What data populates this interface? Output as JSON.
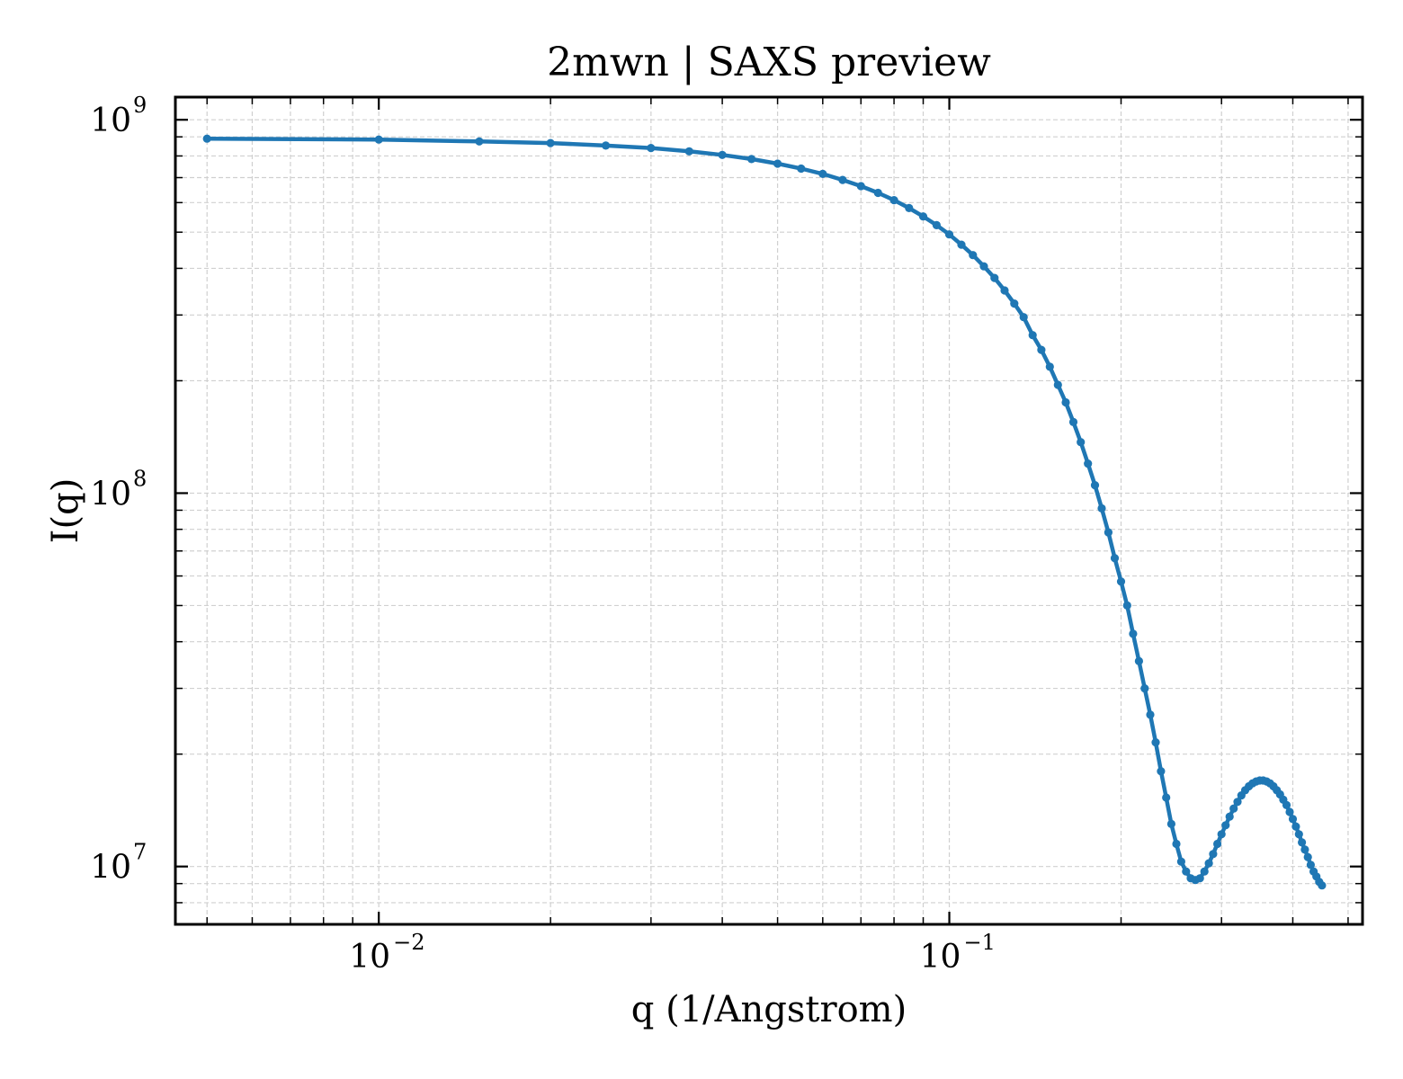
{
  "chart_data": {
    "type": "line",
    "title": "2mwn | SAXS preview",
    "xlabel": "q (1/Angstrom)",
    "ylabel": "I(q)",
    "xscale": "log",
    "yscale": "log",
    "xlim": [
      0.0044,
      0.53
    ],
    "ylim": [
      7000000,
      1150000000
    ],
    "grid": true,
    "x_ticks": [
      {
        "value": 0.01,
        "base": "10",
        "exp": "−2"
      },
      {
        "value": 0.1,
        "base": "10",
        "exp": "−1"
      }
    ],
    "y_ticks": [
      {
        "value": 10000000,
        "base": "10",
        "exp": "7"
      },
      {
        "value": 100000000,
        "base": "10",
        "exp": "8"
      },
      {
        "value": 1000000000,
        "base": "10",
        "exp": "9"
      }
    ],
    "series": [
      {
        "color": "#1f77b4",
        "marker": "dot",
        "points": [
          [
            0.005,
            890000000
          ],
          [
            0.01,
            885000000
          ],
          [
            0.015,
            875000000
          ],
          [
            0.02,
            866000000
          ],
          [
            0.025,
            853000000
          ],
          [
            0.03,
            840000000
          ],
          [
            0.035,
            823000000
          ],
          [
            0.04,
            805000000
          ],
          [
            0.045,
            785000000
          ],
          [
            0.05,
            763000000
          ],
          [
            0.055,
            740000000
          ],
          [
            0.06,
            716000000
          ],
          [
            0.065,
            690000000
          ],
          [
            0.07,
            664000000
          ],
          [
            0.075,
            637000000
          ],
          [
            0.08,
            609000000
          ],
          [
            0.085,
            580000000
          ],
          [
            0.09,
            551000000
          ],
          [
            0.095,
            522000000
          ],
          [
            0.1,
            493000000
          ],
          [
            0.105,
            463000000
          ],
          [
            0.11,
            434000000
          ],
          [
            0.115,
            405000000
          ],
          [
            0.12,
            377000000
          ],
          [
            0.125,
            349000000
          ],
          [
            0.13,
            322000000
          ],
          [
            0.135,
            296000000
          ],
          [
            0.14,
            265000000
          ],
          [
            0.145,
            242000000
          ],
          [
            0.15,
            218000000
          ],
          [
            0.155,
            195000000
          ],
          [
            0.16,
            175000000
          ],
          [
            0.165,
            155000000
          ],
          [
            0.17,
            137000000
          ],
          [
            0.175,
            120000000
          ],
          [
            0.18,
            105000000
          ],
          [
            0.185,
            91000000
          ],
          [
            0.19,
            78500000
          ],
          [
            0.195,
            67000000
          ],
          [
            0.2,
            58000000
          ],
          [
            0.205,
            50000000
          ],
          [
            0.21,
            42000000
          ],
          [
            0.215,
            35500000
          ],
          [
            0.22,
            30000000
          ],
          [
            0.225,
            25500000
          ],
          [
            0.23,
            21500000
          ],
          [
            0.235,
            18000000
          ],
          [
            0.24,
            15300000
          ],
          [
            0.245,
            13000000
          ],
          [
            0.25,
            11500000
          ],
          [
            0.255,
            10300000
          ],
          [
            0.26,
            9700000
          ],
          [
            0.265,
            9300000
          ],
          [
            0.27,
            9200000
          ],
          [
            0.275,
            9300000
          ],
          [
            0.28,
            9700000
          ],
          [
            0.285,
            10200000
          ],
          [
            0.29,
            10800000
          ],
          [
            0.295,
            11500000
          ],
          [
            0.3,
            12200000
          ],
          [
            0.305,
            12900000
          ],
          [
            0.31,
            13600000
          ],
          [
            0.315,
            14300000
          ],
          [
            0.32,
            14900000
          ],
          [
            0.325,
            15500000
          ],
          [
            0.33,
            16000000
          ],
          [
            0.335,
            16400000
          ],
          [
            0.34,
            16700000
          ],
          [
            0.345,
            16900000
          ],
          [
            0.35,
            17000000
          ],
          [
            0.355,
            17000000
          ],
          [
            0.36,
            16900000
          ],
          [
            0.365,
            16700000
          ],
          [
            0.37,
            16400000
          ],
          [
            0.375,
            16000000
          ],
          [
            0.38,
            15600000
          ],
          [
            0.385,
            15100000
          ],
          [
            0.39,
            14600000
          ],
          [
            0.395,
            14000000
          ],
          [
            0.4,
            13400000
          ],
          [
            0.405,
            12800000
          ],
          [
            0.41,
            12200000
          ],
          [
            0.415,
            11600000
          ],
          [
            0.42,
            11100000
          ],
          [
            0.425,
            10600000
          ],
          [
            0.43,
            10100000
          ],
          [
            0.435,
            9700000
          ],
          [
            0.44,
            9400000
          ],
          [
            0.445,
            9100000
          ],
          [
            0.45,
            8900000
          ]
        ]
      }
    ]
  }
}
